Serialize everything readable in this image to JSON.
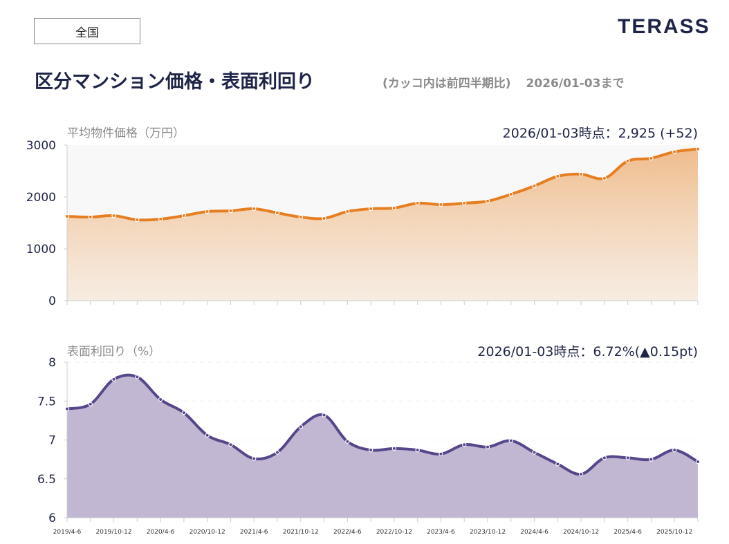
{
  "region": "全国",
  "logo": "TERASS",
  "title": "区分マンション価格・表面利回り",
  "subtitle_note": "(カッコ内は前四半期比)",
  "subtitle_date": "2026/01-03まで",
  "colors": {
    "price_line": "#E67E22",
    "yield_line": "#56468a",
    "yield_fill": "#c1b7d3",
    "title": "#1e2447"
  },
  "chart_data": [
    {
      "type": "area",
      "title": "平均物件価格（万円）",
      "annotation": "2026/01-03時点：2,925 (+52)",
      "ylim": [
        0,
        3000
      ],
      "yticks": [
        "0",
        "1000",
        "2000",
        "3000"
      ],
      "x": [
        "2019/4-6",
        "2019/7-9",
        "2019/10-12",
        "2020/1-3",
        "2020/4-6",
        "2020/7-9",
        "2020/10-12",
        "2021/1-3",
        "2021/4-6",
        "2021/7-9",
        "2021/10-12",
        "2022/1-3",
        "2022/4-6",
        "2022/7-9",
        "2022/10-12",
        "2023/1-3",
        "2023/4-6",
        "2023/7-9",
        "2023/10-12",
        "2024/1-3",
        "2024/4-6",
        "2024/7-9",
        "2024/10-12",
        "2025/1-3",
        "2025/4-6",
        "2025/7-9",
        "2025/10-12",
        "2026/1-3"
      ],
      "values": [
        1627,
        1613,
        1640,
        1560,
        1573,
        1640,
        1720,
        1733,
        1773,
        1693,
        1613,
        1587,
        1720,
        1773,
        1787,
        1880,
        1853,
        1880,
        1920,
        2053,
        2213,
        2400,
        2440,
        2360,
        2693,
        2747,
        2873,
        2925
      ],
      "grid": false
    },
    {
      "type": "area",
      "title": "表面利回り（%）",
      "annotation": "2026/01-03時点：6.72%(▲0.15pt)",
      "ylim": [
        6,
        8
      ],
      "yticks": [
        "6",
        "6.5",
        "7",
        "7.5",
        "8"
      ],
      "xtick_labels": [
        "2019/4-6",
        "2019/10-12",
        "2020/4-6",
        "2020/10-12",
        "2021/4-6",
        "2021/10-12",
        "2022/4-6",
        "2022/10-12",
        "2023/4-6",
        "2023/10-12",
        "2024/4-6",
        "2024/10-12",
        "2025/4-6",
        "2025/10-12"
      ],
      "values": [
        7.4,
        7.46,
        7.78,
        7.81,
        7.52,
        7.35,
        7.06,
        6.94,
        6.76,
        6.84,
        7.17,
        7.32,
        6.98,
        6.87,
        6.89,
        6.87,
        6.82,
        6.94,
        6.91,
        6.99,
        6.84,
        6.69,
        6.56,
        6.77,
        6.77,
        6.75,
        6.87,
        6.72
      ],
      "grid": true
    }
  ]
}
